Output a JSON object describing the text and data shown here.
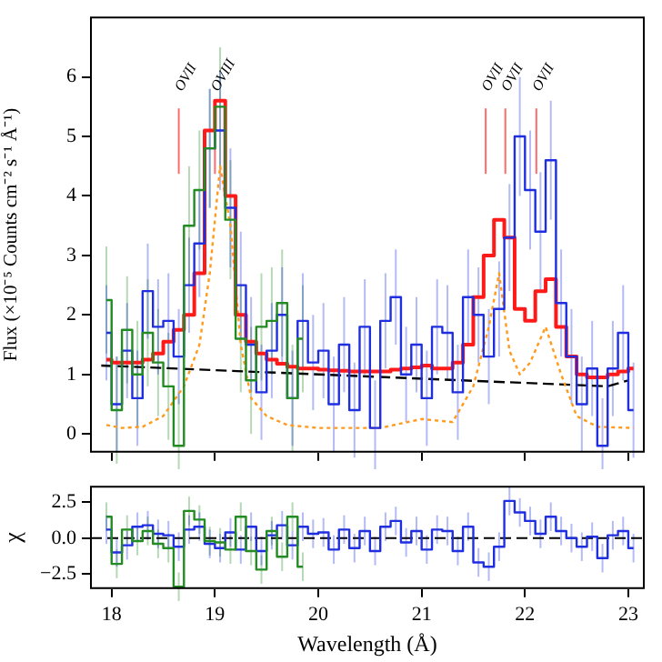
{
  "chart_data": [
    {
      "type": "step",
      "ylabel": "Flux (×10⁻⁵ Counts cm⁻² s⁻¹ Å⁻¹)",
      "xlim": [
        17.8,
        23.15
      ],
      "xticks": [
        18,
        19,
        20,
        21,
        22,
        23
      ],
      "ylim": [
        -0.3,
        7.0
      ],
      "yticks": [
        0,
        1,
        2,
        3,
        4,
        5,
        6
      ],
      "tick_labels": "y",
      "grid": false,
      "legend": false,
      "marker": "none",
      "x": [
        17.95,
        18.05,
        18.15,
        18.25,
        18.35,
        18.45,
        18.55,
        18.65,
        18.75,
        18.85,
        18.95,
        19.05,
        19.15,
        19.25,
        19.35,
        19.45,
        19.55,
        19.65,
        19.75,
        19.85,
        19.95,
        20.05,
        20.15,
        20.25,
        20.35,
        20.45,
        20.55,
        20.65,
        20.75,
        20.85,
        20.95,
        21.05,
        21.15,
        21.25,
        21.35,
        21.45,
        21.55,
        21.65,
        21.75,
        21.85,
        21.95,
        22.05,
        22.15,
        22.25,
        22.35,
        22.45,
        22.55,
        22.65,
        22.75,
        22.85,
        22.95,
        23.05
      ],
      "series": [
        {
          "type": "step",
          "color": "#228b22",
          "x": [
            17.95,
            18.05,
            18.15,
            18.25,
            18.35,
            18.45,
            18.55,
            18.65,
            18.75,
            18.85,
            18.95,
            19.05,
            19.15,
            19.25,
            19.35,
            19.45,
            19.55,
            19.65,
            19.75,
            19.85
          ],
          "values": [
            2.25,
            0.4,
            1.75,
            1.0,
            1.7,
            1.2,
            0.8,
            -0.2,
            3.5,
            4.1,
            4.8,
            5.5,
            3.6,
            1.6,
            0.9,
            1.8,
            1.9,
            2.2,
            0.6,
            1.6
          ],
          "errors": [
            0.9,
            0.9,
            0.9,
            0.9,
            0.9,
            0.9,
            0.9,
            0.9,
            1.0,
            1.0,
            1.0,
            1.0,
            1.0,
            0.9,
            0.9,
            0.9,
            0.9,
            0.9,
            0.9,
            0.9
          ]
        },
        {
          "type": "step",
          "color": "#1f2fe0",
          "values": [
            1.7,
            0.5,
            1.4,
            0.6,
            2.4,
            1.8,
            1.9,
            1.3,
            2.5,
            3.2,
            4.8,
            5.1,
            3.8,
            2.5,
            1.5,
            0.7,
            1.4,
            2.0,
            0.6,
            1.9,
            1.2,
            1.4,
            0.5,
            1.5,
            0.4,
            1.8,
            0.1,
            1.9,
            2.3,
            1.0,
            1.5,
            0.6,
            1.8,
            1.7,
            0.7,
            2.3,
            2.0,
            1.3,
            2.1,
            3.3,
            5.0,
            4.1,
            3.4,
            4.6,
            2.2,
            1.3,
            0.5,
            1.1,
            -0.2,
            1.1,
            1.7,
            0.4
          ],
          "errors": [
            0.8,
            0.8,
            0.8,
            0.8,
            0.8,
            0.8,
            0.8,
            0.8,
            0.8,
            0.9,
            1.0,
            1.0,
            1.0,
            0.9,
            0.8,
            0.8,
            0.8,
            0.8,
            0.8,
            0.8,
            0.8,
            0.8,
            0.8,
            0.8,
            0.8,
            0.8,
            0.8,
            0.8,
            0.8,
            0.8,
            0.8,
            0.8,
            0.8,
            0.8,
            0.8,
            0.8,
            0.8,
            0.8,
            0.8,
            0.9,
            1.0,
            1.0,
            1.0,
            1.0,
            0.9,
            0.8,
            0.8,
            0.8,
            0.8,
            0.8,
            0.8,
            0.8
          ]
        },
        {
          "type": "step",
          "color": "#ff1a1a",
          "values": [
            1.25,
            1.2,
            1.2,
            1.2,
            1.25,
            1.35,
            1.55,
            1.75,
            2.0,
            2.7,
            5.1,
            5.6,
            4.0,
            2.0,
            1.55,
            1.35,
            1.25,
            1.18,
            1.13,
            1.1,
            1.1,
            1.08,
            1.07,
            1.06,
            1.05,
            1.05,
            1.05,
            1.05,
            1.08,
            1.1,
            1.12,
            1.15,
            1.1,
            1.1,
            1.2,
            1.5,
            2.3,
            3.0,
            3.6,
            3.3,
            2.1,
            1.9,
            2.4,
            2.6,
            1.8,
            1.3,
            1.0,
            0.95,
            0.95,
            1.0,
            1.05,
            1.1
          ]
        },
        {
          "type": "line",
          "color": "#ff9a1a",
          "line_style": "dotted",
          "x": [
            17.95,
            18.1,
            18.3,
            18.5,
            18.7,
            18.85,
            18.95,
            19.05,
            19.15,
            19.25,
            19.35,
            19.5,
            19.7,
            20.0,
            20.6,
            21.0,
            21.3,
            21.5,
            21.65,
            21.75,
            21.85,
            21.95,
            22.05,
            22.2,
            22.35,
            22.5,
            22.7,
            23.05
          ],
          "values": [
            0.15,
            0.1,
            0.12,
            0.3,
            0.8,
            1.5,
            2.7,
            4.5,
            3.5,
            1.5,
            0.6,
            0.3,
            0.15,
            0.1,
            0.1,
            0.25,
            0.2,
            0.8,
            1.8,
            2.7,
            1.4,
            1.0,
            1.2,
            1.8,
            1.0,
            0.3,
            0.12,
            0.1
          ]
        },
        {
          "type": "line",
          "color": "#000000",
          "line_style": "dashed",
          "x": [
            17.9,
            22.8,
            23.0
          ],
          "values": [
            1.15,
            0.8,
            0.9
          ]
        }
      ],
      "ref_lines": [
        {
          "axis": "x",
          "value": 18.65,
          "label": "OVII",
          "color": "#ff6a6a"
        },
        {
          "axis": "x",
          "value": 19.0,
          "label": "OVIII",
          "color": "#ff6a6a"
        },
        {
          "axis": "x",
          "value": 21.62,
          "label": "OVII",
          "color": "#ff6a6a"
        },
        {
          "axis": "x",
          "value": 21.81,
          "label": "OVII",
          "color": "#ff6a6a"
        },
        {
          "axis": "x",
          "value": 22.11,
          "label": "OVII",
          "color": "#ff6a6a"
        }
      ]
    },
    {
      "type": "step",
      "ylabel": "χ",
      "xlabel": "Wavelength (Å)",
      "xlim": [
        17.8,
        23.15
      ],
      "xticks": [
        18,
        19,
        20,
        21,
        22,
        23
      ],
      "ylim": [
        -3.5,
        3.6
      ],
      "yticks": [
        {
          "value": -2.5,
          "label": "−2.5"
        },
        {
          "value": 0,
          "label": "0.0"
        },
        {
          "value": 2.5,
          "label": "2.5"
        }
      ],
      "grid": false,
      "legend": false,
      "marker": "none",
      "ref_lines": [
        {
          "axis": "y",
          "value": 0,
          "color": "#000000",
          "line_style": "dashed"
        }
      ],
      "x": [
        17.95,
        18.05,
        18.15,
        18.25,
        18.35,
        18.45,
        18.55,
        18.65,
        18.75,
        18.85,
        18.95,
        19.05,
        19.15,
        19.25,
        19.35,
        19.45,
        19.55,
        19.65,
        19.75,
        19.85,
        19.95,
        20.05,
        20.15,
        20.25,
        20.35,
        20.45,
        20.55,
        20.65,
        20.75,
        20.85,
        20.95,
        21.05,
        21.15,
        21.25,
        21.35,
        21.45,
        21.55,
        21.65,
        21.75,
        21.85,
        21.95,
        22.05,
        22.15,
        22.25,
        22.35,
        22.45,
        22.55,
        22.65,
        22.75,
        22.85,
        22.95,
        23.05
      ],
      "series": [
        {
          "type": "step",
          "color": "#228b22",
          "x": [
            17.95,
            18.05,
            18.15,
            18.25,
            18.35,
            18.45,
            18.55,
            18.65,
            18.75,
            18.85,
            18.95,
            19.05,
            19.15,
            19.25,
            19.35,
            19.45,
            19.55,
            19.65,
            19.75,
            19.85
          ],
          "values": [
            1.5,
            -1.8,
            0.6,
            -0.2,
            0.5,
            -0.4,
            -0.7,
            -3.4,
            1.9,
            1.3,
            -0.2,
            -0.3,
            -0.8,
            1.5,
            -0.9,
            -2.2,
            0.5,
            -1.3,
            1.5,
            -2.0
          ],
          "errors": [
            1,
            1,
            1,
            1,
            1,
            1,
            1,
            1,
            1,
            1,
            1,
            1,
            1,
            1,
            1,
            1,
            1,
            1,
            1,
            1
          ]
        },
        {
          "type": "step",
          "color": "#1f2fe0",
          "values": [
            0.6,
            -1.0,
            -0.5,
            0.8,
            0.9,
            0.3,
            0.2,
            -0.6,
            0.6,
            0.8,
            -0.4,
            -0.7,
            0.4,
            -0.8,
            0.8,
            -0.9,
            0.2,
            0.9,
            -0.5,
            0.8,
            0.3,
            0.4,
            -0.8,
            0.6,
            -0.7,
            0.5,
            -0.9,
            0.8,
            1.2,
            -0.3,
            0.5,
            -0.8,
            0.6,
            0.5,
            -0.9,
            0.8,
            -1.7,
            -2.0,
            -0.6,
            2.6,
            1.8,
            1.2,
            0.3,
            1.5,
            0.5,
            0.0,
            -0.6,
            0.1,
            -1.4,
            0.2,
            0.5,
            -0.7
          ],
          "errors": [
            1,
            1,
            1,
            1,
            1,
            1,
            1,
            1,
            1,
            1,
            1,
            1,
            1,
            1,
            1,
            1,
            1,
            1,
            1,
            1,
            1,
            1,
            1,
            1,
            1,
            1,
            1,
            1,
            1,
            1,
            1,
            1,
            1,
            1,
            1,
            1,
            1,
            1,
            1,
            1,
            1,
            1,
            1,
            1,
            1,
            1,
            1,
            1,
            1,
            1,
            1,
            1
          ]
        }
      ]
    }
  ]
}
